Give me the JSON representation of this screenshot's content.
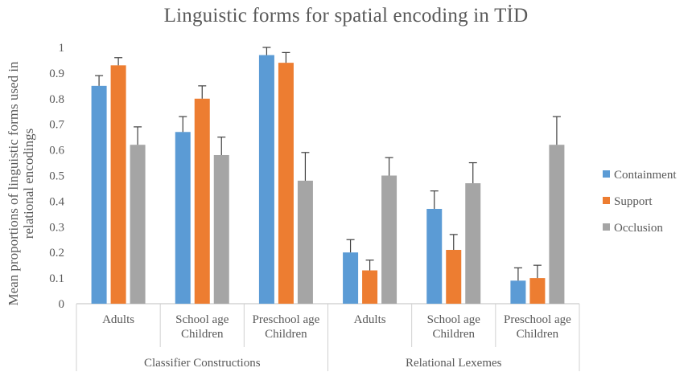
{
  "chart_data": {
    "type": "bar",
    "title": "Linguistic forms for spatial encoding in TİD",
    "ylabel_lines": [
      "Mean proportions of linguistic forms used in",
      "relational encodings"
    ],
    "ylim": [
      0,
      1
    ],
    "yticks": [
      "0",
      "0.1",
      "0.2",
      "0.3",
      "0.4",
      "0.5",
      "0.6",
      "0.7",
      "0.8",
      "0.9",
      "1"
    ],
    "grid": false,
    "legend_position": "right",
    "categories": [
      {
        "lines": [
          "Adults"
        ]
      },
      {
        "lines": [
          "School age",
          "Children"
        ]
      },
      {
        "lines": [
          "Preschool age",
          "Children"
        ]
      },
      {
        "lines": [
          "Adults"
        ]
      },
      {
        "lines": [
          "School age",
          "Children"
        ]
      },
      {
        "lines": [
          "Preschool age",
          "Children"
        ]
      }
    ],
    "groups": [
      {
        "label": "Classifier Constructions",
        "span": [
          0,
          2
        ]
      },
      {
        "label": "Relational Lexemes",
        "span": [
          3,
          5
        ]
      }
    ],
    "series": [
      {
        "name": "Containment",
        "color": "#5b9bd5",
        "values": [
          0.85,
          0.67,
          0.97,
          0.2,
          0.37,
          0.09
        ],
        "errors": [
          0.04,
          0.06,
          0.03,
          0.05,
          0.07,
          0.05
        ]
      },
      {
        "name": "Support",
        "color": "#ed7d31",
        "values": [
          0.93,
          0.8,
          0.94,
          0.13,
          0.21,
          0.1
        ],
        "errors": [
          0.03,
          0.05,
          0.04,
          0.04,
          0.06,
          0.05
        ]
      },
      {
        "name": "Occlusion",
        "color": "#a5a5a5",
        "values": [
          0.62,
          0.58,
          0.48,
          0.5,
          0.47,
          0.62
        ],
        "errors": [
          0.07,
          0.07,
          0.11,
          0.07,
          0.08,
          0.11
        ]
      }
    ]
  }
}
